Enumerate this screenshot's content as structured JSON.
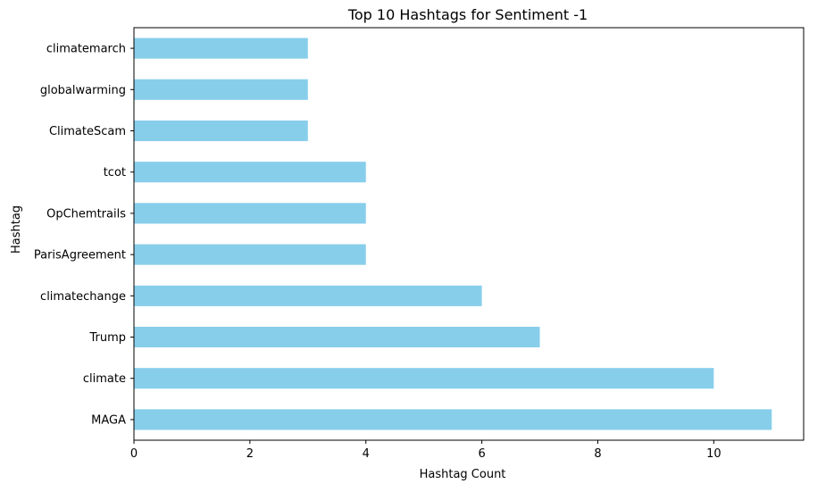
{
  "chart_data": {
    "type": "bar",
    "orientation": "horizontal",
    "title": "Top 10 Hashtags for Sentiment -1",
    "xlabel": "Hashtag Count",
    "ylabel": "Hashtag",
    "xlim": [
      0,
      11.55
    ],
    "xticks": [
      0,
      2,
      4,
      6,
      8,
      10
    ],
    "grid": false,
    "bar_color": "#87ceeb",
    "categories": [
      "MAGA",
      "climate",
      "Trump",
      "climatechange",
      "ParisAgreement",
      "OpChemtrails",
      "tcot",
      "ClimateScam",
      "globalwarming",
      "climatemarch"
    ],
    "values": [
      11,
      10,
      7,
      6,
      4,
      4,
      4,
      3,
      3,
      3
    ]
  }
}
